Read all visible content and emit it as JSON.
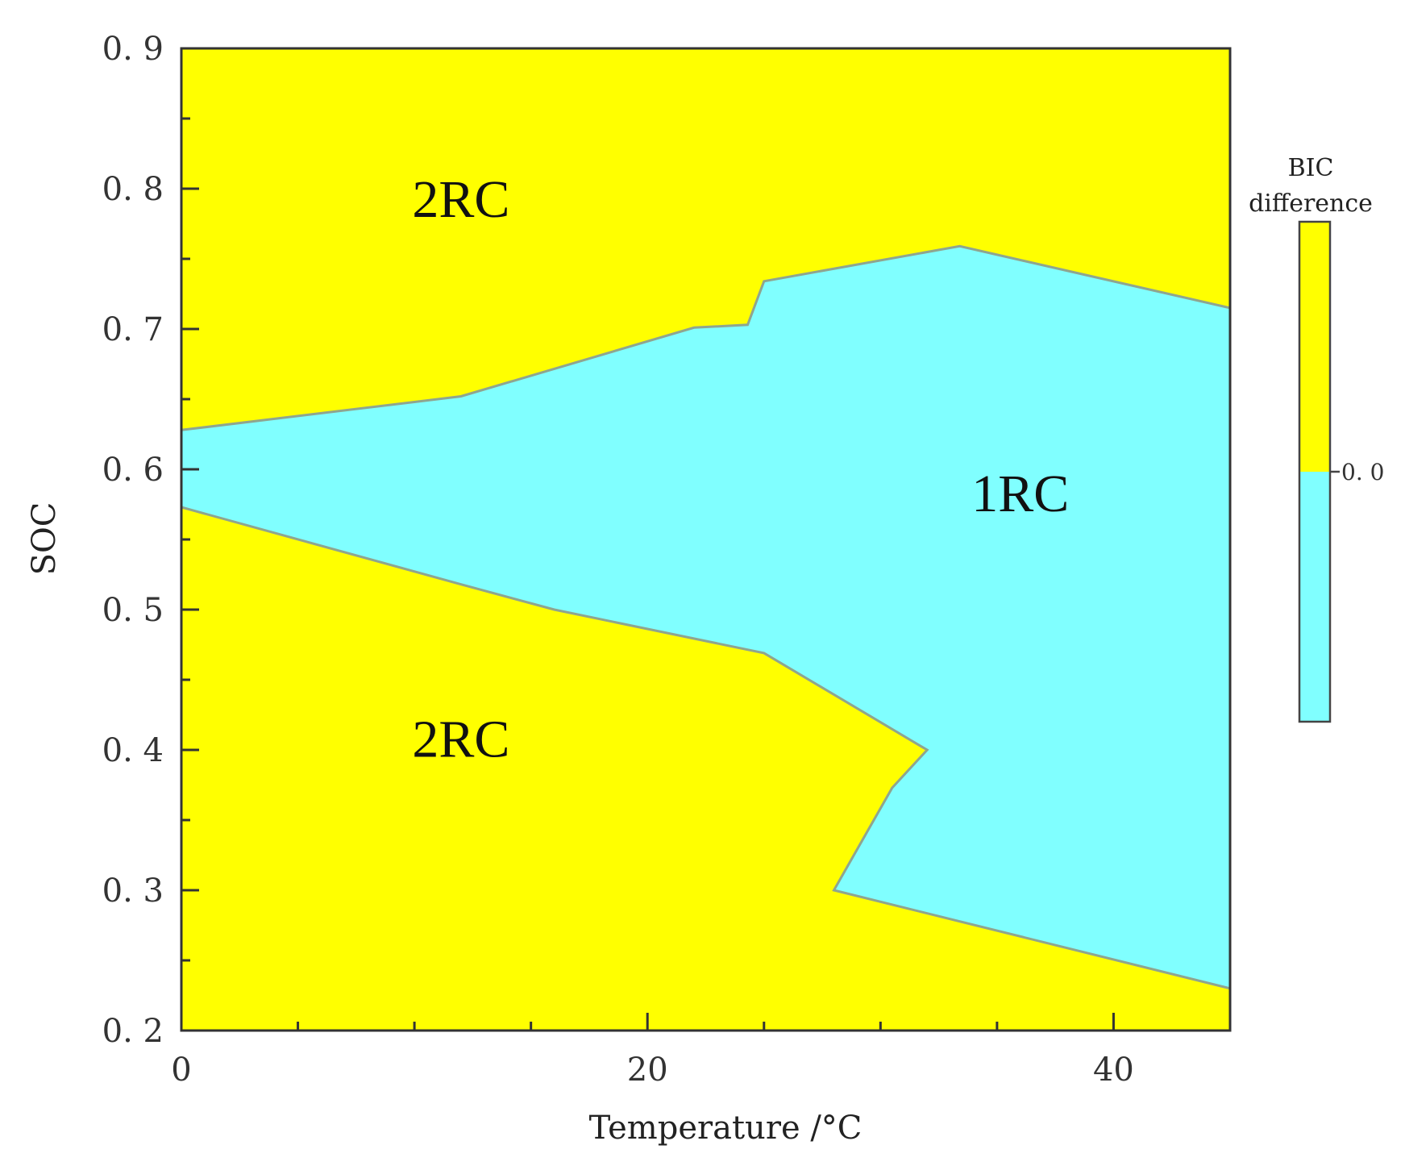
{
  "chart_data": {
    "type": "contour",
    "title": "",
    "xlabel": "Temperature  /°C",
    "ylabel": "SOC",
    "xlim": [
      0,
      45
    ],
    "ylim": [
      0.2,
      0.9
    ],
    "x_ticks": [
      {
        "value": 0,
        "label": "0"
      },
      {
        "value": 20,
        "label": "20"
      },
      {
        "value": 40,
        "label": "40"
      }
    ],
    "y_ticks": [
      {
        "value": 0.2,
        "label": "0. 2"
      },
      {
        "value": 0.3,
        "label": "0. 3"
      },
      {
        "value": 0.4,
        "label": "0. 4"
      },
      {
        "value": 0.5,
        "label": "0. 5"
      },
      {
        "value": 0.6,
        "label": "0. 6"
      },
      {
        "value": 0.7,
        "label": "0. 7"
      },
      {
        "value": 0.8,
        "label": "0. 8"
      },
      {
        "value": 0.9,
        "label": "0. 9"
      }
    ],
    "x_minor_step": 5,
    "y_minor_step": 0.05,
    "grid": false,
    "background_region": {
      "label": "2RC",
      "color": "#ffff00"
    },
    "boundary_color": "#8fa58f",
    "region_1RC": {
      "label": "1RC",
      "color": "#80ffff",
      "upper_boundary": [
        [
          0,
          0.628
        ],
        [
          12,
          0.652
        ],
        [
          22,
          0.701
        ],
        [
          24.3,
          0.703
        ],
        [
          25,
          0.734
        ],
        [
          33.4,
          0.759
        ],
        [
          45,
          0.715
        ]
      ],
      "lower_boundary": [
        [
          45,
          0.23
        ],
        [
          28,
          0.3
        ],
        [
          30.5,
          0.373
        ],
        [
          32,
          0.4
        ],
        [
          25,
          0.469
        ],
        [
          16,
          0.5
        ],
        [
          12,
          0.518
        ],
        [
          0,
          0.573
        ]
      ]
    },
    "annotations": [
      {
        "text": "2RC",
        "x": 12,
        "y": 0.78
      },
      {
        "text": "2RC",
        "x": 12,
        "y": 0.395
      },
      {
        "text": "1RC",
        "x": 36,
        "y": 0.57
      }
    ],
    "colorbar": {
      "title_lines": [
        "BIC",
        "difference"
      ],
      "tick_label": "0. 0",
      "colors": [
        "#ffff00",
        "#80ffff"
      ],
      "placement": "right"
    }
  }
}
